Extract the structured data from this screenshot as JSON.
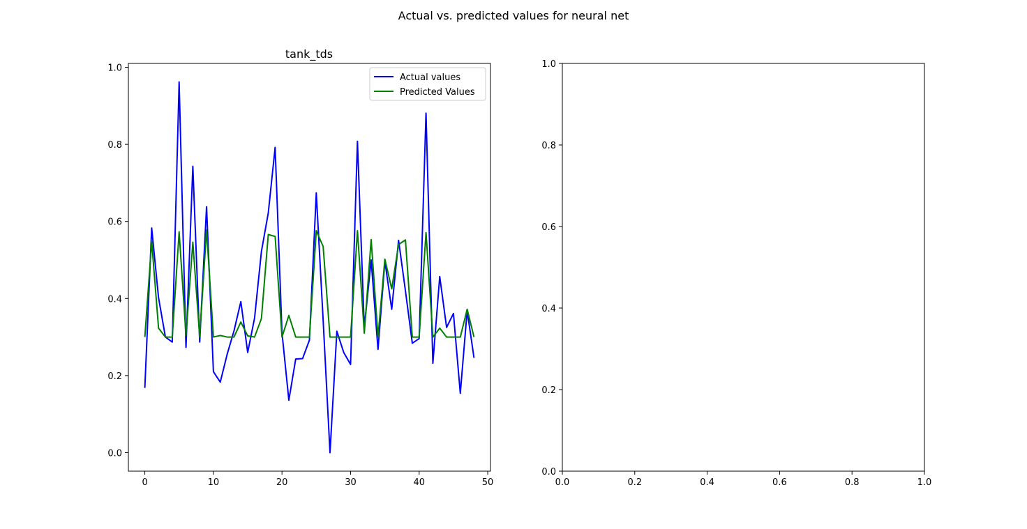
{
  "figure": {
    "suptitle": "Actual vs. predicted values for neural net"
  },
  "chart_data": [
    {
      "type": "line",
      "title": "tank_tds",
      "xlabel": "",
      "ylabel": "",
      "xlim": [
        -2.4,
        50.4
      ],
      "ylim": [
        -0.048,
        1.01
      ],
      "xticks": [
        0,
        10,
        20,
        30,
        40,
        50
      ],
      "xtick_labels": [
        "0",
        "10",
        "20",
        "30",
        "40",
        "50"
      ],
      "yticks": [
        0.0,
        0.2,
        0.4,
        0.6,
        0.8,
        1.0
      ],
      "ytick_labels": [
        "0.0",
        "0.2",
        "0.4",
        "0.6",
        "0.8",
        "1.0"
      ],
      "grid": false,
      "legend_position": "top-right",
      "x": [
        0,
        1,
        2,
        3,
        4,
        5,
        6,
        7,
        8,
        9,
        10,
        11,
        12,
        13,
        14,
        15,
        16,
        17,
        18,
        19,
        20,
        21,
        22,
        23,
        24,
        25,
        26,
        27,
        28,
        29,
        30,
        31,
        32,
        33,
        34,
        35,
        36,
        37,
        38,
        39,
        40,
        41,
        42,
        43,
        44,
        45,
        46,
        47,
        48
      ],
      "series": [
        {
          "name": "Actual values",
          "color": "#0000ff",
          "values": [
            0.168,
            0.583,
            0.402,
            0.3,
            0.287,
            0.962,
            0.273,
            0.743,
            0.287,
            0.638,
            0.21,
            0.183,
            0.255,
            0.316,
            0.392,
            0.26,
            0.349,
            0.522,
            0.622,
            0.792,
            0.311,
            0.136,
            0.243,
            0.244,
            0.292,
            0.674,
            0.344,
            0.0,
            0.315,
            0.26,
            0.229,
            0.808,
            0.324,
            0.5,
            0.268,
            0.497,
            0.372,
            0.551,
            0.42,
            0.284,
            0.296,
            0.881,
            0.232,
            0.457,
            0.325,
            0.361,
            0.154,
            0.368,
            0.246
          ]
        },
        {
          "name": "Predicted Values",
          "color": "#008000",
          "values": [
            0.3,
            0.548,
            0.323,
            0.3,
            0.3,
            0.573,
            0.304,
            0.546,
            0.3,
            0.578,
            0.3,
            0.304,
            0.3,
            0.3,
            0.339,
            0.303,
            0.3,
            0.348,
            0.566,
            0.561,
            0.3,
            0.356,
            0.3,
            0.3,
            0.3,
            0.576,
            0.535,
            0.3,
            0.3,
            0.3,
            0.3,
            0.576,
            0.31,
            0.553,
            0.3,
            0.502,
            0.425,
            0.54,
            0.552,
            0.3,
            0.3,
            0.571,
            0.3,
            0.323,
            0.3,
            0.3,
            0.3,
            0.372,
            0.3
          ]
        }
      ]
    },
    {
      "type": "line",
      "title": "",
      "xlabel": "",
      "ylabel": "",
      "xlim": [
        0.0,
        1.0
      ],
      "ylim": [
        0.0,
        1.0
      ],
      "xticks": [
        0.0,
        0.2,
        0.4,
        0.6,
        0.8,
        1.0
      ],
      "xtick_labels": [
        "0.0",
        "0.2",
        "0.4",
        "0.6",
        "0.8",
        "1.0"
      ],
      "yticks": [
        0.0,
        0.2,
        0.4,
        0.6,
        0.8,
        1.0
      ],
      "ytick_labels": [
        "0.0",
        "0.2",
        "0.4",
        "0.6",
        "0.8",
        "1.0"
      ],
      "grid": false,
      "series": []
    }
  ]
}
